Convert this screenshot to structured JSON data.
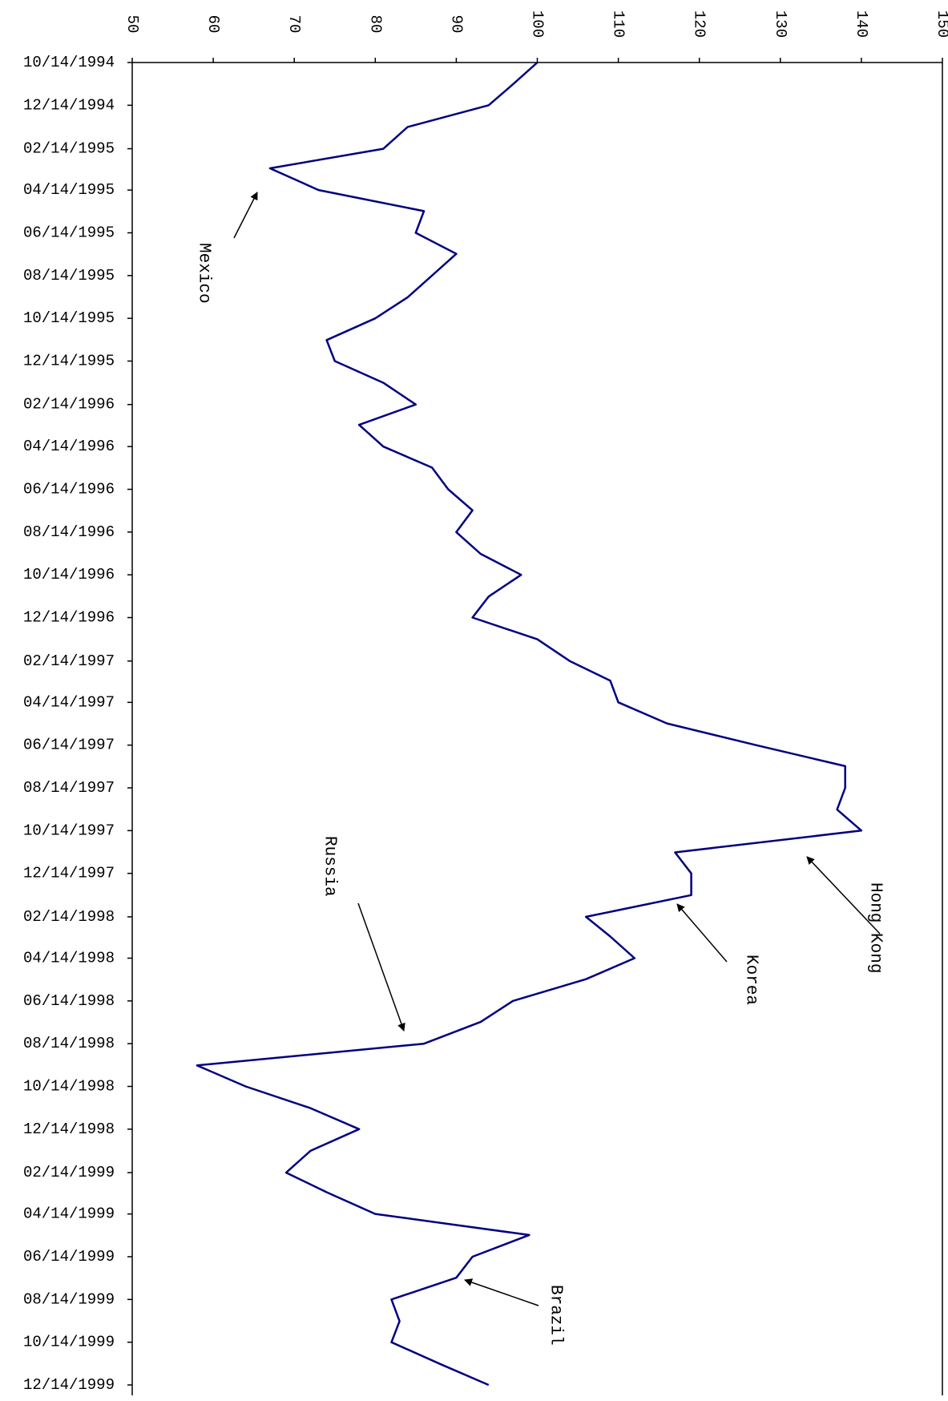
{
  "chart_data": {
    "type": "line",
    "orientation": "vertical-time",
    "xticks": [
      "10/14/1994",
      "12/14/1994",
      "02/14/1995",
      "04/14/1995",
      "06/14/1995",
      "08/14/1995",
      "10/14/1995",
      "12/14/1995",
      "02/14/1996",
      "04/14/1996",
      "06/14/1996",
      "08/14/1996",
      "10/14/1996",
      "12/14/1996",
      "02/14/1997",
      "04/14/1997",
      "06/14/1997",
      "08/14/1997",
      "10/14/1997",
      "12/14/1997",
      "02/14/1998",
      "04/14/1998",
      "06/14/1998",
      "08/14/1998",
      "10/14/1998",
      "12/14/1998",
      "02/14/1999",
      "04/14/1999",
      "06/14/1999",
      "08/14/1999",
      "10/14/1999",
      "12/14/1999"
    ],
    "ylim": [
      50,
      150
    ],
    "yticks": [
      50,
      60,
      70,
      80,
      90,
      100,
      110,
      120,
      130,
      140,
      150
    ],
    "x": [
      "10/14/1994",
      "11/14/1994",
      "12/14/1994",
      "01/14/1995",
      "02/14/1995",
      "03/14/1995",
      "04/14/1995",
      "05/14/1995",
      "06/14/1995",
      "07/14/1995",
      "08/14/1995",
      "09/14/1995",
      "10/14/1995",
      "11/14/1995",
      "12/14/1995",
      "01/14/1996",
      "02/14/1996",
      "03/14/1996",
      "04/14/1996",
      "05/14/1996",
      "06/14/1996",
      "07/14/1996",
      "08/14/1996",
      "09/14/1996",
      "10/14/1996",
      "11/14/1996",
      "12/14/1996",
      "01/14/1997",
      "02/14/1997",
      "03/14/1997",
      "04/14/1997",
      "05/14/1997",
      "06/14/1997",
      "07/14/1997",
      "08/14/1997",
      "09/14/1997",
      "10/14/1997",
      "11/14/1997",
      "12/14/1997",
      "01/14/1998",
      "02/14/1998",
      "03/14/1998",
      "04/14/1998",
      "05/14/1998",
      "06/14/1998",
      "07/14/1998",
      "08/14/1998",
      "09/14/1998",
      "10/14/1998",
      "11/14/1998",
      "12/14/1998",
      "01/14/1999",
      "02/14/1999",
      "03/14/1999",
      "04/14/1999",
      "05/14/1999",
      "06/14/1999",
      "07/14/1999",
      "08/14/1999",
      "09/14/1999",
      "10/14/1999",
      "11/14/1999",
      "12/14/1999"
    ],
    "series": [
      {
        "color": "#000080",
        "values": [
          100,
          97,
          94,
          84,
          81,
          67,
          73,
          86,
          85,
          90,
          87,
          84,
          80,
          74,
          75,
          81,
          85,
          78,
          81,
          87,
          89,
          92,
          90,
          93,
          98,
          94,
          92,
          100,
          104,
          109,
          110,
          116,
          127,
          138,
          138,
          137,
          140,
          117,
          119,
          119,
          106,
          109,
          112,
          106,
          97,
          93,
          86,
          58,
          64,
          72,
          78,
          72,
          69,
          74,
          80,
          99,
          92,
          90,
          82,
          83,
          82,
          88,
          94
        ]
      }
    ],
    "annotations": [
      "Mexico",
      "Russia",
      "Hong Kong",
      "Korea",
      "Brazil"
    ]
  }
}
